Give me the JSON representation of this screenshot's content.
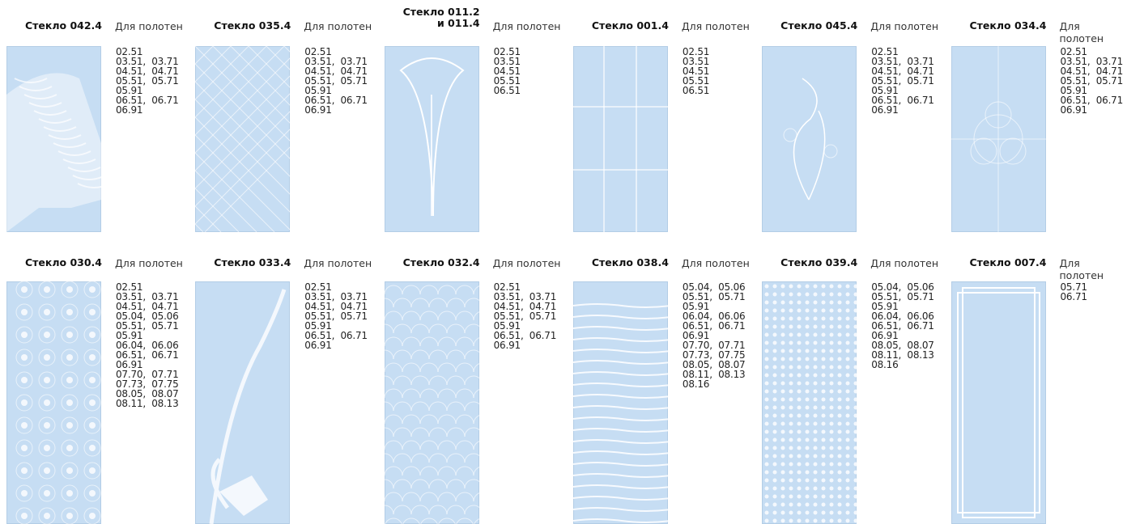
{
  "label": "Для полотен",
  "items": [
    {
      "title": [
        "Стекло  042.4"
      ],
      "codes": [
        "02.51",
        "03.51,  03.71",
        "04.51,  04.71",
        "05.51,  05.71",
        "05.91",
        "06.51,  06.71",
        "06.91"
      ]
    },
    {
      "title": [
        "Стекло  035.4"
      ],
      "codes": [
        "02.51",
        "03.51,  03.71",
        "04.51,  04.71",
        "05.51,  05.71",
        "05.91",
        "06.51,  06.71",
        "06.91"
      ]
    },
    {
      "title": [
        "Стекло  011.2",
        "и 011.4"
      ],
      "codes": [
        "02.51",
        "03.51",
        "04.51",
        "05.51",
        "06.51"
      ]
    },
    {
      "title": [
        "Стекло  001.4"
      ],
      "codes": [
        "02.51",
        "03.51",
        "04.51",
        "05.51",
        "06.51"
      ]
    },
    {
      "title": [
        "Стекло  045.4"
      ],
      "codes": [
        "02.51",
        "03.51,  03.71",
        "04.51,  04.71",
        "05.51,  05.71",
        "05.91",
        "06.51,  06.71",
        "06.91"
      ]
    },
    {
      "title": [
        "Стекло  034.4"
      ],
      "codes": [
        "02.51",
        "03.51,  03.71",
        "04.51,  04.71",
        "05.51,  05.71",
        "05.91",
        "06.51,  06.71",
        "06.91"
      ]
    },
    {
      "title": [
        "Стекло 030.4"
      ],
      "codes": [
        "02.51",
        "03.51,  03.71",
        "04.51,  04.71",
        "05.04,  05.06",
        "05.51,  05.71",
        "05.91",
        "06.04,  06.06",
        "06.51,  06.71",
        "06.91",
        "07.70,  07.71",
        "07.73,  07.75",
        "08.05,  08.07",
        "08.11,  08.13"
      ]
    },
    {
      "title": [
        "Стекло  033.4"
      ],
      "codes": [
        "02.51",
        "03.51,  03.71",
        "04.51,  04.71",
        "05.51,  05.71",
        "05.91",
        "06.51,  06.71",
        "06.91"
      ]
    },
    {
      "title": [
        "Стекло 032.4"
      ],
      "codes": [
        "02.51",
        "03.51,  03.71",
        "04.51,  04.71",
        "05.51,  05.71",
        "05.91",
        "06.51,  06.71",
        "06.91"
      ]
    },
    {
      "title": [
        "Стекло  038.4"
      ],
      "codes": [
        "05.04,  05.06",
        "05.51,  05.71",
        "05.91",
        "06.04,  06.06",
        "06.51,  06.71",
        "06.91",
        "07.70,  07.71",
        "07.73,  07.75",
        "08.05,  08.07",
        "08.11,  08.13",
        "08.16"
      ]
    },
    {
      "title": [
        "Стекло  039.4"
      ],
      "codes": [
        "05.04,  05.06",
        "05.51,  05.71",
        "05.91",
        "06.04,  06.06",
        "06.51,  06.71",
        "06.91",
        "08.05,  08.07",
        "08.11,  08.13",
        "08.16"
      ]
    },
    {
      "title": [
        "Стекло  007.4"
      ],
      "codes": [
        "05.71",
        "06.71"
      ]
    }
  ]
}
